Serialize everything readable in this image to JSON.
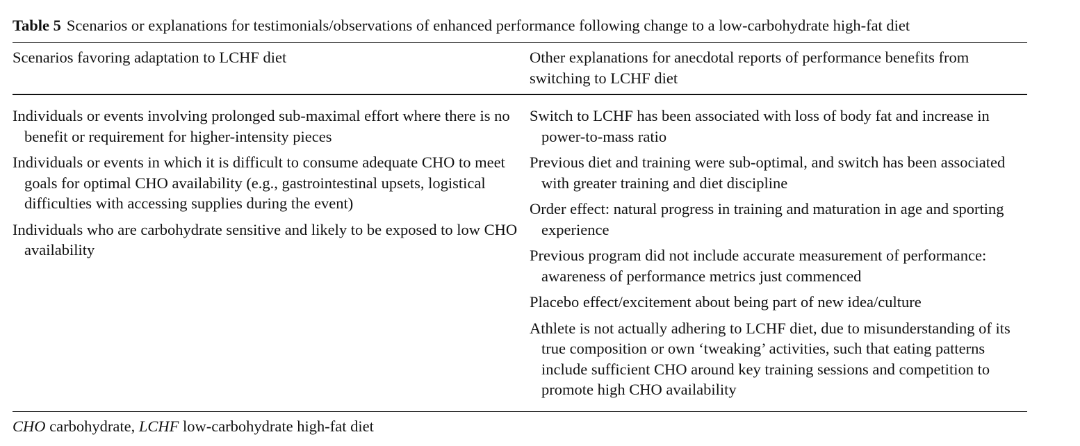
{
  "table": {
    "label": "Table 5",
    "caption": "Scenarios or explanations for testimonials/observations of enhanced performance following change to a low-carbohydrate high-fat diet",
    "columns": [
      {
        "header": "Scenarios favoring adaptation to LCHF diet",
        "entries": [
          "Individuals or events involving prolonged sub-maximal effort where there is no benefit or requirement for higher-intensity pieces",
          "Individuals or events in which it is difficult to consume adequate CHO to meet goals for optimal CHO availability (e.g., gastrointestinal upsets, logistical difficulties with accessing supplies during the event)",
          "Individuals who are carbohydrate sensitive and likely to be exposed to low CHO availability"
        ]
      },
      {
        "header": "Other explanations for anecdotal reports of performance benefits from switching to LCHF diet",
        "entries": [
          "Switch to LCHF has been associated with loss of body fat and increase in power-to-mass ratio",
          "Previous diet and training were sub-optimal, and switch has been associated with greater training and diet discipline",
          "Order effect: natural progress in training and maturation in age and sporting experience",
          "Previous program did not include accurate measurement of performance: awareness of performance metrics just commenced",
          "Placebo effect/excitement about being part of new idea/culture",
          "Athlete is not actually adhering to LCHF diet, due to misunderstanding of its true composition or own ‘tweaking’ activities, such that eating patterns include sufficient CHO around key training sessions and competition to promote high CHO availability"
        ]
      }
    ],
    "footnote": {
      "abbr_1": "CHO",
      "def_1": " carbohydrate, ",
      "abbr_2": "LCHF",
      "def_2": " low-carbohydrate high-fat diet"
    }
  }
}
